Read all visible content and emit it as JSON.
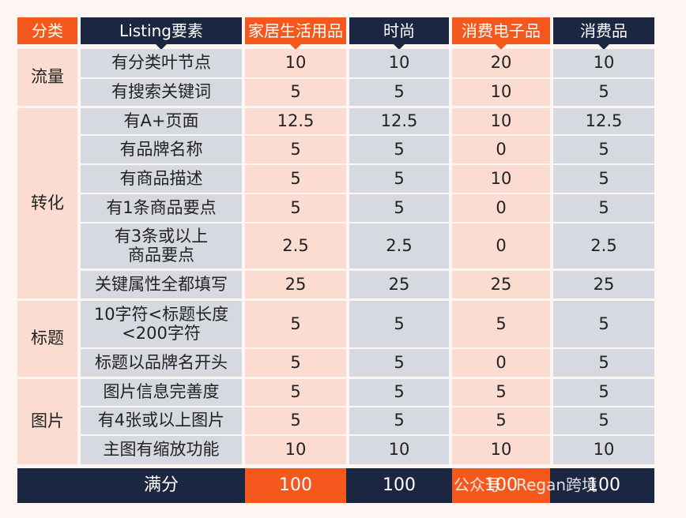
{
  "header": {
    "columns": [
      "分类",
      "Listing要素",
      "家居生活用品",
      "时尚",
      "消费电子品",
      "消费品"
    ]
  },
  "groups": [
    {
      "name": "流量",
      "rows": [
        {
          "label": "有分类叶节点",
          "values": [
            10,
            10,
            20,
            10
          ]
        },
        {
          "label": "有搜索关键词",
          "values": [
            5,
            5,
            10,
            5
          ]
        }
      ]
    },
    {
      "name": "转化",
      "rows": [
        {
          "label": "有A+页面",
          "values": [
            12.5,
            12.5,
            10,
            12.5
          ]
        },
        {
          "label": "有品牌名称",
          "values": [
            5,
            5,
            0,
            5
          ]
        },
        {
          "label": "有商品描述",
          "values": [
            5,
            5,
            10,
            5
          ]
        },
        {
          "label": "有1条商品要点",
          "values": [
            5,
            5,
            0,
            5
          ]
        },
        {
          "label": "有3条或以上\n商品要点",
          "values": [
            2.5,
            2.5,
            0,
            2.5
          ]
        },
        {
          "label": "关键属性全都填写",
          "values": [
            25,
            25,
            25,
            25
          ]
        }
      ]
    },
    {
      "name": "标题",
      "rows": [
        {
          "label": "10字符<标题长度\n<200字符",
          "values": [
            5,
            5,
            5,
            5
          ]
        },
        {
          "label": "标题以品牌名开头",
          "values": [
            5,
            5,
            0,
            5
          ]
        }
      ]
    },
    {
      "name": "图片",
      "rows": [
        {
          "label": "图片信息完善度",
          "values": [
            5,
            5,
            5,
            5
          ]
        },
        {
          "label": "有4张或以上图片",
          "values": [
            5,
            5,
            5,
            5
          ]
        },
        {
          "label": "主图有缩放功能",
          "values": [
            10,
            10,
            10,
            10
          ]
        }
      ]
    }
  ],
  "total": {
    "label": "满分",
    "values": [
      100,
      100,
      100,
      100
    ]
  },
  "watermark": "公众号 · Regan跨境"
}
